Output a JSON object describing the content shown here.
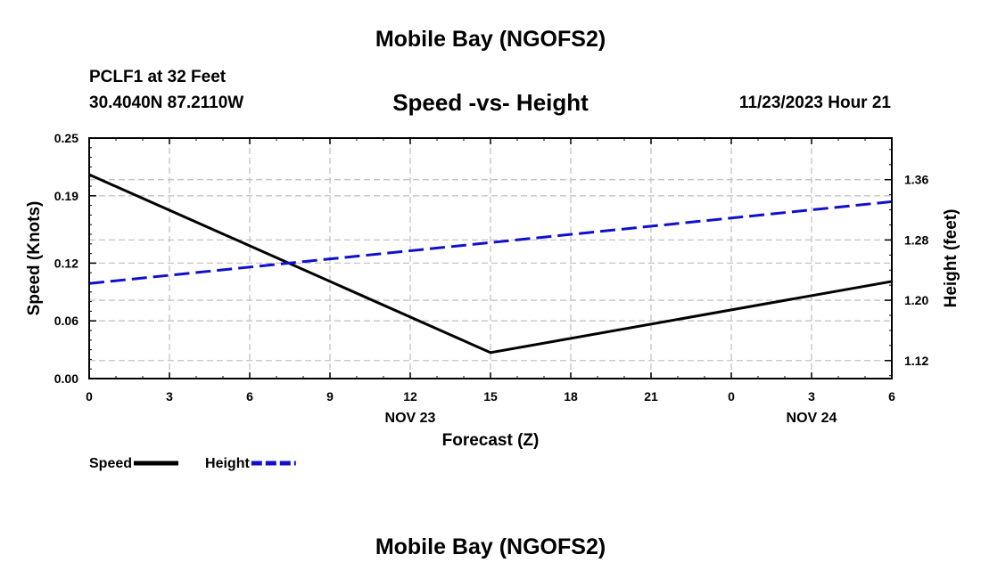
{
  "header": {
    "title": "Mobile Bay (NGOFS2)",
    "station": "PCLF1 at 32 Feet",
    "coords": "30.4040N  87.2110W",
    "datetime": "11/23/2023 Hour 21"
  },
  "footer": {
    "title": "Mobile Bay (NGOFS2)"
  },
  "chart_data": {
    "type": "line",
    "title": "Speed -vs- Height",
    "xlabel": "Forecast (Z)",
    "ylabel": "Speed (Knots)",
    "y2label": "Height (feet)",
    "x": [
      0,
      3,
      6,
      9,
      12,
      15,
      18,
      21,
      24,
      27,
      30
    ],
    "x_tick_labels": [
      "0",
      "3",
      "6",
      "9",
      "12",
      "15",
      "18",
      "21",
      "0",
      "3",
      "6"
    ],
    "date_labels": [
      {
        "x": 12,
        "label": "NOV 23"
      },
      {
        "x": 27,
        "label": "NOV 24"
      }
    ],
    "xlim": [
      0,
      30
    ],
    "ylim": [
      0,
      0.25
    ],
    "y_ticks": [
      0.0,
      0.06,
      0.12,
      0.19,
      0.25
    ],
    "y_tick_labels": [
      "0.00",
      "0.06",
      "0.12",
      "0.19",
      "0.25"
    ],
    "y2lim": [
      1.0961,
      1.4152
    ],
    "y2_ticks": [
      1.12,
      1.2,
      1.28,
      1.36
    ],
    "y2_tick_labels": [
      "1.12",
      "1.20",
      "1.28",
      "1.36"
    ],
    "grid": true,
    "legend": "bottom-left",
    "series": [
      {
        "name": "Speed",
        "axis": "left",
        "color": "#000000",
        "dash": "solid",
        "x": [
          0,
          15,
          30
        ],
        "values": [
          0.212,
          0.027,
          0.101
        ]
      },
      {
        "name": "Height",
        "axis": "right",
        "color": "#1010cc",
        "dash": "dashed",
        "x": [
          0,
          30
        ],
        "values": [
          1.2223,
          1.3308
        ]
      }
    ]
  }
}
